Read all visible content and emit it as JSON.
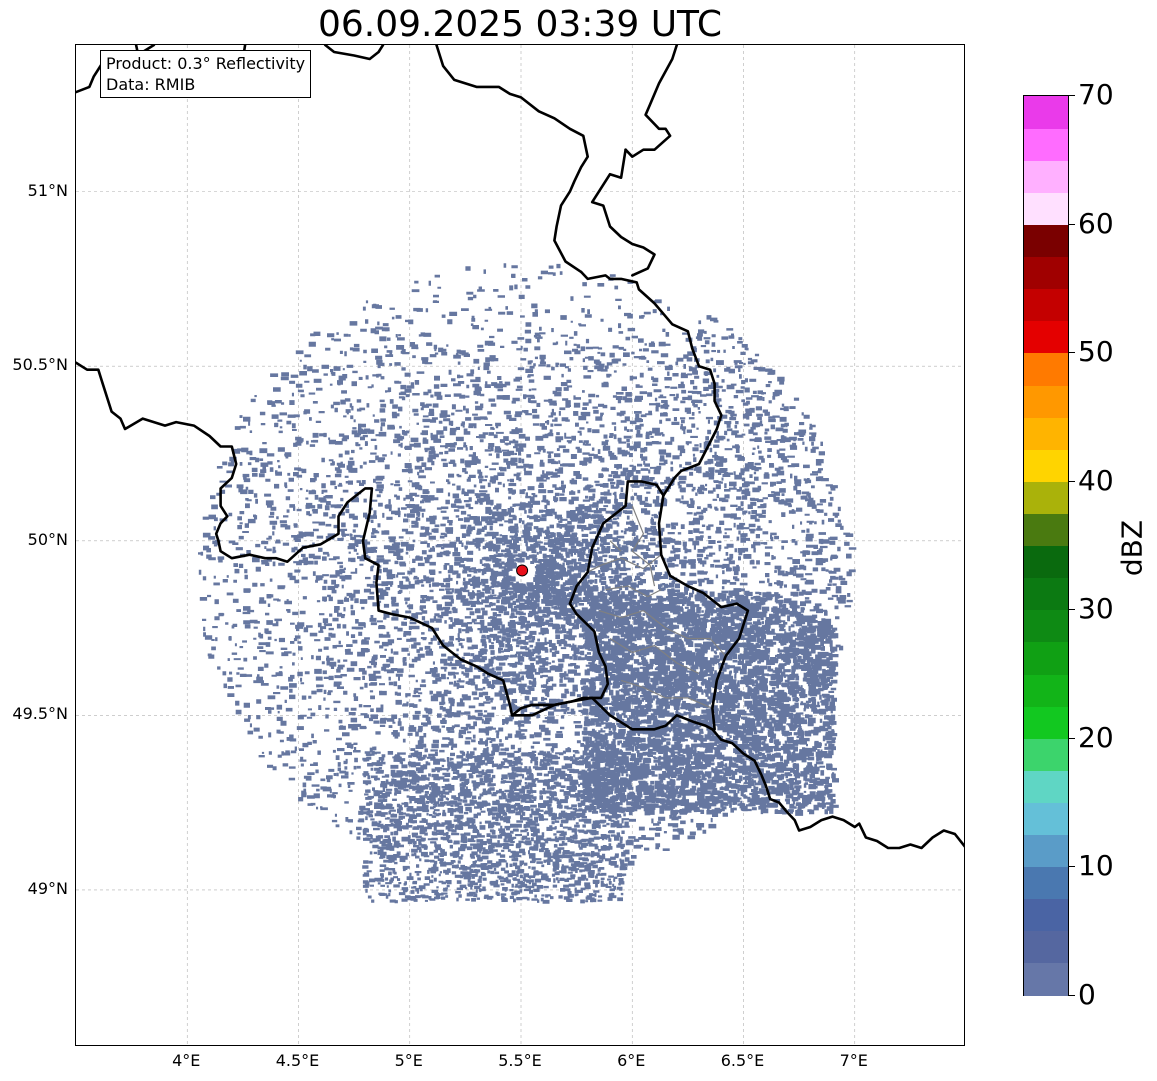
{
  "title": "06.09.2025 03:39 UTC",
  "info": {
    "product": "Product: 0.3° Reflectivity",
    "data": "Data: RMIB"
  },
  "map": {
    "extent_lon": [
      3.5,
      7.5
    ],
    "extent_lat": [
      48.55,
      51.42
    ],
    "lat_ticks": [
      {
        "value": 51.0,
        "label": "51°N"
      },
      {
        "value": 50.5,
        "label": "50.5°N"
      },
      {
        "value": 50.0,
        "label": "50°N"
      },
      {
        "value": 49.5,
        "label": "49.5°N"
      },
      {
        "value": 49.0,
        "label": "49°N"
      }
    ],
    "lon_ticks": [
      {
        "value": 4.0,
        "label": "4°E"
      },
      {
        "value": 4.5,
        "label": "4.5°E"
      },
      {
        "value": 5.0,
        "label": "5°E"
      },
      {
        "value": 5.5,
        "label": "5.5°E"
      },
      {
        "value": 6.0,
        "label": "6°E"
      },
      {
        "value": 6.5,
        "label": "6.5°E"
      },
      {
        "value": 7.0,
        "label": "7°E"
      }
    ],
    "gridlines": true,
    "radar_site": {
      "lon": 5.505,
      "lat": 49.915,
      "color": "#e8101a"
    },
    "echo_color": "#6677a0",
    "border_color": "#000000",
    "sub_border_color": "#808080",
    "borders": [
      [
        [
          3.5,
          51.285
        ],
        [
          3.56,
          51.3
        ],
        [
          3.58,
          51.33
        ],
        [
          3.62,
          51.37
        ],
        [
          3.7,
          51.38
        ],
        [
          3.8,
          51.4
        ],
        [
          3.85,
          51.42
        ]
      ],
      [
        [
          3.77,
          51.42
        ],
        [
          3.78,
          51.39
        ],
        [
          3.83,
          51.35
        ],
        [
          3.9,
          51.36
        ],
        [
          3.95,
          51.35
        ],
        [
          4.05,
          51.37
        ],
        [
          4.15,
          51.36
        ],
        [
          4.25,
          51.38
        ],
        [
          4.26,
          51.42
        ]
      ],
      [
        [
          4.62,
          51.42
        ],
        [
          4.66,
          51.4
        ],
        [
          4.75,
          51.39
        ],
        [
          4.82,
          51.38
        ],
        [
          4.86,
          51.4
        ],
        [
          4.88,
          51.42
        ]
      ],
      [
        [
          5.12,
          51.42
        ],
        [
          5.15,
          51.36
        ],
        [
          5.2,
          51.32
        ],
        [
          5.3,
          51.3
        ],
        [
          5.4,
          51.3
        ],
        [
          5.45,
          51.28
        ],
        [
          5.5,
          51.27
        ],
        [
          5.58,
          51.23
        ],
        [
          5.65,
          51.21
        ],
        [
          5.72,
          51.18
        ],
        [
          5.78,
          51.16
        ],
        [
          5.8,
          51.1
        ],
        [
          5.77,
          51.07
        ],
        [
          5.74,
          51.03
        ],
        [
          5.72,
          51.0
        ],
        [
          5.68,
          50.96
        ],
        [
          5.66,
          50.9
        ],
        [
          5.65,
          50.86
        ],
        [
          5.7,
          50.8
        ],
        [
          5.77,
          50.77
        ]
      ],
      [
        [
          5.77,
          50.77
        ],
        [
          5.8,
          50.75
        ],
        [
          5.88,
          50.76
        ],
        [
          5.9,
          50.75
        ],
        [
          5.95,
          50.75
        ],
        [
          6.02,
          50.74
        ],
        [
          6.03,
          50.72
        ],
        [
          6.1,
          50.68
        ],
        [
          6.14,
          50.65
        ],
        [
          6.18,
          50.62
        ],
        [
          6.25,
          50.6
        ],
        [
          6.27,
          50.55
        ],
        [
          6.3,
          50.5
        ],
        [
          6.35,
          50.49
        ],
        [
          6.37,
          50.45
        ],
        [
          6.37,
          50.4
        ],
        [
          6.4,
          50.36
        ],
        [
          6.38,
          50.32
        ],
        [
          6.34,
          50.27
        ],
        [
          6.3,
          50.22
        ],
        [
          6.22,
          50.2
        ],
        [
          6.19,
          50.18
        ],
        [
          6.16,
          50.15
        ],
        [
          6.14,
          50.13
        ]
      ],
      [
        [
          6.14,
          50.13
        ],
        [
          6.11,
          50.16
        ],
        [
          6.04,
          50.17
        ],
        [
          5.98,
          50.17
        ],
        [
          5.97,
          50.1
        ],
        [
          5.87,
          50.05
        ],
        [
          5.82,
          49.98
        ],
        [
          5.8,
          49.91
        ],
        [
          5.75,
          49.87
        ],
        [
          5.72,
          49.82
        ],
        [
          5.75,
          49.79
        ],
        [
          5.83,
          49.74
        ],
        [
          5.85,
          49.68
        ],
        [
          5.88,
          49.64
        ],
        [
          5.89,
          49.59
        ],
        [
          5.86,
          49.55
        ],
        [
          5.82,
          49.55
        ],
        [
          5.78,
          49.55
        ],
        [
          5.73,
          49.54
        ],
        [
          5.65,
          49.53
        ],
        [
          5.6,
          49.53
        ],
        [
          5.55,
          49.53
        ],
        [
          5.5,
          49.52
        ],
        [
          5.46,
          49.5
        ]
      ],
      [
        [
          5.46,
          49.5
        ],
        [
          5.45,
          49.53
        ],
        [
          5.42,
          49.6
        ],
        [
          5.35,
          49.62
        ],
        [
          5.3,
          49.64
        ],
        [
          5.23,
          49.66
        ],
        [
          5.15,
          49.7
        ],
        [
          5.1,
          49.75
        ],
        [
          5.0,
          49.78
        ],
        [
          4.92,
          49.79
        ],
        [
          4.86,
          49.8
        ],
        [
          4.85,
          49.88
        ],
        [
          4.86,
          49.93
        ],
        [
          4.8,
          49.95
        ],
        [
          4.79,
          50.0
        ],
        [
          4.82,
          50.08
        ],
        [
          4.83,
          50.15
        ],
        [
          4.8,
          50.15
        ],
        [
          4.72,
          50.11
        ],
        [
          4.68,
          50.07
        ],
        [
          4.68,
          50.02
        ],
        [
          4.6,
          49.99
        ],
        [
          4.52,
          49.98
        ],
        [
          4.45,
          49.94
        ],
        [
          4.4,
          49.95
        ],
        [
          4.35,
          49.95
        ],
        [
          4.28,
          49.96
        ],
        [
          4.2,
          49.95
        ],
        [
          4.15,
          49.97
        ],
        [
          4.14,
          50.0
        ],
        [
          4.13,
          50.02
        ],
        [
          4.15,
          50.05
        ],
        [
          4.18,
          50.07
        ],
        [
          4.15,
          50.1
        ],
        [
          4.15,
          50.15
        ],
        [
          4.2,
          50.18
        ],
        [
          4.22,
          50.22
        ],
        [
          4.2,
          50.27
        ],
        [
          4.15,
          50.27
        ],
        [
          4.1,
          50.3
        ],
        [
          4.03,
          50.33
        ],
        [
          3.95,
          50.34
        ],
        [
          3.9,
          50.33
        ],
        [
          3.8,
          50.35
        ],
        [
          3.72,
          50.32
        ],
        [
          3.7,
          50.35
        ],
        [
          3.66,
          50.37
        ],
        [
          3.62,
          50.45
        ],
        [
          3.6,
          50.49
        ],
        [
          3.55,
          50.49
        ],
        [
          3.5,
          50.51
        ]
      ],
      [
        [
          5.46,
          49.5
        ],
        [
          5.55,
          49.5
        ],
        [
          5.65,
          49.53
        ],
        [
          5.73,
          49.54
        ],
        [
          5.82,
          49.55
        ],
        [
          5.9,
          49.5
        ],
        [
          6.0,
          49.46
        ],
        [
          6.1,
          49.46
        ],
        [
          6.15,
          49.47
        ],
        [
          6.2,
          49.5
        ],
        [
          6.28,
          49.48
        ],
        [
          6.33,
          49.47
        ],
        [
          6.36,
          49.46
        ],
        [
          6.4,
          49.43
        ],
        [
          6.45,
          49.42
        ],
        [
          6.5,
          49.39
        ],
        [
          6.55,
          49.37
        ],
        [
          6.58,
          49.33
        ],
        [
          6.6,
          49.3
        ],
        [
          6.62,
          49.26
        ],
        [
          6.66,
          49.25
        ],
        [
          6.7,
          49.22
        ],
        [
          6.73,
          49.2
        ],
        [
          6.75,
          49.17
        ],
        [
          6.8,
          49.18
        ],
        [
          6.85,
          49.2
        ],
        [
          6.9,
          49.21
        ],
        [
          6.95,
          49.2
        ],
        [
          7.0,
          49.18
        ],
        [
          7.02,
          49.19
        ],
        [
          7.05,
          49.15
        ],
        [
          7.1,
          49.14
        ],
        [
          7.15,
          49.12
        ],
        [
          7.2,
          49.12
        ],
        [
          7.25,
          49.13
        ],
        [
          7.3,
          49.12
        ],
        [
          7.35,
          49.15
        ],
        [
          7.4,
          49.17
        ],
        [
          7.45,
          49.16
        ],
        [
          7.5,
          49.12
        ]
      ],
      [
        [
          6.14,
          50.13
        ],
        [
          6.12,
          50.05
        ],
        [
          6.13,
          49.96
        ],
        [
          6.17,
          49.9
        ],
        [
          6.25,
          49.87
        ],
        [
          6.32,
          49.85
        ],
        [
          6.4,
          49.81
        ],
        [
          6.47,
          49.82
        ],
        [
          6.52,
          49.8
        ],
        [
          6.48,
          49.72
        ],
        [
          6.42,
          49.67
        ],
        [
          6.38,
          49.6
        ],
        [
          6.36,
          49.52
        ],
        [
          6.37,
          49.46
        ]
      ],
      [
        [
          5.97,
          51.12
        ],
        [
          5.95,
          51.04
        ],
        [
          5.9,
          51.05
        ],
        [
          5.85,
          51.0
        ],
        [
          5.82,
          50.97
        ],
        [
          5.87,
          50.96
        ],
        [
          5.9,
          50.9
        ],
        [
          5.95,
          50.87
        ],
        [
          6.0,
          50.85
        ],
        [
          6.05,
          50.84
        ],
        [
          6.1,
          50.82
        ],
        [
          6.07,
          50.78
        ],
        [
          6.0,
          50.76
        ]
      ],
      [
        [
          6.2,
          51.42
        ],
        [
          6.18,
          51.38
        ],
        [
          6.12,
          51.31
        ],
        [
          6.08,
          51.25
        ],
        [
          6.06,
          51.22
        ],
        [
          6.12,
          51.18
        ],
        [
          6.15,
          51.18
        ],
        [
          6.17,
          51.16
        ],
        [
          6.1,
          51.12
        ],
        [
          6.05,
          51.12
        ],
        [
          6.0,
          51.1
        ],
        [
          5.97,
          51.12
        ]
      ]
    ],
    "sub_borders": [
      [
        [
          5.8,
          49.91
        ],
        [
          5.86,
          49.93
        ],
        [
          5.95,
          49.95
        ],
        [
          6.05,
          49.92
        ],
        [
          6.13,
          49.96
        ]
      ],
      [
        [
          5.88,
          49.86
        ],
        [
          5.98,
          49.87
        ],
        [
          6.07,
          49.84
        ],
        [
          6.13,
          49.86
        ]
      ],
      [
        [
          5.85,
          49.8
        ],
        [
          5.95,
          49.78
        ],
        [
          6.05,
          49.8
        ],
        [
          6.15,
          49.75
        ],
        [
          6.25,
          49.72
        ],
        [
          6.35,
          49.72
        ],
        [
          6.42,
          49.67
        ]
      ],
      [
        [
          5.9,
          49.72
        ],
        [
          6.0,
          49.68
        ],
        [
          6.1,
          49.7
        ],
        [
          6.2,
          49.65
        ],
        [
          6.3,
          49.62
        ]
      ],
      [
        [
          5.95,
          49.6
        ],
        [
          6.05,
          49.58
        ],
        [
          6.15,
          49.55
        ],
        [
          6.25,
          49.55
        ],
        [
          6.36,
          49.52
        ]
      ],
      [
        [
          6.0,
          50.1
        ],
        [
          6.05,
          50.02
        ],
        [
          6.0,
          49.97
        ],
        [
          6.08,
          49.93
        ],
        [
          6.1,
          49.87
        ]
      ],
      [
        [
          5.9,
          50.0
        ],
        [
          5.95,
          49.97
        ]
      ]
    ]
  },
  "colorbar": {
    "label": "dBZ",
    "vmin": 0,
    "vmax": 70,
    "step": 2.5,
    "ticks": [
      0,
      10,
      20,
      30,
      40,
      50,
      60,
      70
    ],
    "colors": [
      "#6677a8",
      "#5567a0",
      "#4a64a4",
      "#4a78b0",
      "#5a9cc8",
      "#64c0d8",
      "#5fd6c4",
      "#3cd46c",
      "#12c820",
      "#12b418",
      "#10a014",
      "#0e8a14",
      "#0c7a12",
      "#0a6a0e",
      "#4a7a10",
      "#aab20a",
      "#ffd400",
      "#ffb400",
      "#ff9800",
      "#ff7a00",
      "#e40000",
      "#c40000",
      "#a00000",
      "#7a0000",
      "#ffe0ff",
      "#ffb0ff",
      "#ff6cff",
      "#ea3aea"
    ]
  }
}
